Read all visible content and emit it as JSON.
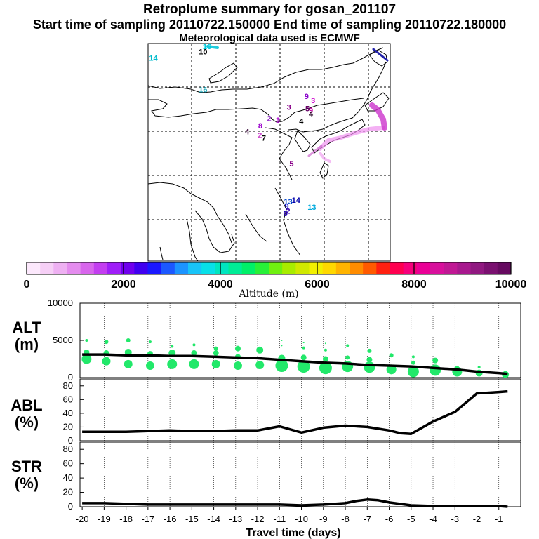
{
  "header": {
    "title": "Retroplume summary for gosan_201107",
    "times": "Start time of sampling 20110722.150000     End time of sampling 20110722.180000",
    "met": "Meteorological data used is ECMWF"
  },
  "map": {
    "labels": [
      {
        "text": "16",
        "lon": 123.4,
        "lat": 55.2,
        "color": "#00ccdd"
      },
      {
        "text": "10",
        "lon": 122.5,
        "lat": 54.0,
        "color": "#000000"
      },
      {
        "text": "14",
        "lon": 111.2,
        "lat": 52.6,
        "color": "#00bbcc"
      },
      {
        "text": "16",
        "lon": 122.5,
        "lat": 45.5,
        "color": "#22aabb"
      },
      {
        "text": "9",
        "lon": 146.0,
        "lat": 44.0,
        "color": "#8800cc"
      },
      {
        "text": "3",
        "lon": 147.5,
        "lat": 43.0,
        "color": "#cc00cc"
      },
      {
        "text": "3",
        "lon": 142.0,
        "lat": 41.5,
        "color": "#880088"
      },
      {
        "text": "9",
        "lon": 147.0,
        "lat": 40.8,
        "color": "#cc00aa"
      },
      {
        "text": "4",
        "lon": 147.0,
        "lat": 40.0,
        "color": "#220022"
      },
      {
        "text": "5",
        "lon": 146.2,
        "lat": 41.2,
        "color": "#660066"
      },
      {
        "text": "2",
        "lon": 137.5,
        "lat": 39.0,
        "color": "#9933cc"
      },
      {
        "text": "4",
        "lon": 144.8,
        "lat": 38.4,
        "color": "#000000"
      },
      {
        "text": "8",
        "lon": 135.5,
        "lat": 37.3,
        "color": "#9900cc"
      },
      {
        "text": "3",
        "lon": 139.5,
        "lat": 38.6,
        "color": "#aa00cc"
      },
      {
        "text": "4",
        "lon": 132.5,
        "lat": 36.0,
        "color": "#330033"
      },
      {
        "text": "2",
        "lon": 135.4,
        "lat": 35.2,
        "color": "#cc44cc"
      },
      {
        "text": "7",
        "lon": 136.3,
        "lat": 34.6,
        "color": "#000000"
      },
      {
        "text": "5",
        "lon": 142.6,
        "lat": 28.8,
        "color": "#880088"
      },
      {
        "text": "13",
        "lon": 141.8,
        "lat": 20.3,
        "color": "#0044cc"
      },
      {
        "text": "14",
        "lon": 143.6,
        "lat": 20.6,
        "color": "#0000aa"
      },
      {
        "text": "9",
        "lon": 141.5,
        "lat": 19.2,
        "color": "#0000cc"
      },
      {
        "text": "13",
        "lon": 147.2,
        "lat": 19.0,
        "color": "#00aadd"
      },
      {
        "text": "8",
        "lon": 141.2,
        "lat": 17.6,
        "color": "#2200bb"
      },
      {
        "text": "2",
        "lon": 141.8,
        "lat": 18.1,
        "color": "#3300aa"
      }
    ]
  },
  "colorbar": {
    "ticks": [
      0,
      2000,
      4000,
      6000,
      8000,
      10000
    ],
    "label": "Altitude (m)",
    "colors": [
      "#fce8fc",
      "#f6cff6",
      "#eeb0f2",
      "#e48cee",
      "#d866ec",
      "#c33ef0",
      "#9f1ef8",
      "#7000ee",
      "#4000f0",
      "#1a18ff",
      "#1c58ff",
      "#1c94ff",
      "#18c4f8",
      "#08e0e8",
      "#00e6c0",
      "#00ec96",
      "#00f068",
      "#28f038",
      "#70f010",
      "#a8ec00",
      "#d0e800",
      "#f2f000",
      "#ffd800",
      "#ffb400",
      "#ff8c00",
      "#ff5a00",
      "#ff2010",
      "#ff0050",
      "#f6007c",
      "#ea0096",
      "#d8109c",
      "#c01894",
      "#a8188e",
      "#901880",
      "#7a1070",
      "#660a60"
    ]
  },
  "xaxis": {
    "label": "Travel time (days)",
    "ticks": [
      "-20",
      "-19",
      "-18",
      "-17",
      "-16",
      "-15",
      "-14",
      "-13",
      "-12",
      "-11",
      "-10",
      "-9",
      "-8",
      "-7",
      "-6",
      "-5",
      "-4",
      "-3",
      "-2",
      "-1"
    ]
  },
  "panels": {
    "alt": {
      "l1": "ALT",
      "l2": "(m)"
    },
    "abl": {
      "l1": "ABL",
      "l2": "(%)"
    },
    "str": {
      "l1": "STR",
      "l2": "(%)"
    }
  },
  "chart_data": [
    {
      "type": "line",
      "name": "ALT",
      "ylabel": "ALT (m)",
      "ylim": [
        0,
        10000
      ],
      "yticks": [
        0,
        5000,
        10000
      ],
      "x": [
        -20,
        -19,
        -18,
        -17,
        -16,
        -15,
        -14,
        -13,
        -12,
        -11,
        -10,
        -9,
        -8,
        -7,
        -6,
        -5,
        -4,
        -3,
        -2,
        -1,
        -0.6
      ],
      "values": [
        3100,
        3100,
        3000,
        3000,
        2900,
        2900,
        2800,
        2700,
        2600,
        2400,
        2200,
        2000,
        1900,
        1700,
        1600,
        1500,
        1300,
        1100,
        800,
        600,
        500
      ],
      "bubbles": [
        {
          "x": -19.8,
          "y": 2500,
          "r": 7
        },
        {
          "x": -19.8,
          "y": 3400,
          "r": 4
        },
        {
          "x": -19.8,
          "y": 5000,
          "r": 2
        },
        {
          "x": -18.9,
          "y": 2200,
          "r": 6
        },
        {
          "x": -18.9,
          "y": 3300,
          "r": 4
        },
        {
          "x": -18.9,
          "y": 4800,
          "r": 3
        },
        {
          "x": -17.9,
          "y": 1800,
          "r": 6
        },
        {
          "x": -17.9,
          "y": 3400,
          "r": 5
        },
        {
          "x": -17.9,
          "y": 5000,
          "r": 3
        },
        {
          "x": -16.9,
          "y": 1600,
          "r": 6
        },
        {
          "x": -16.9,
          "y": 3200,
          "r": 4
        },
        {
          "x": -16.9,
          "y": 4800,
          "r": 2
        },
        {
          "x": -15.9,
          "y": 1800,
          "r": 7
        },
        {
          "x": -15.9,
          "y": 3300,
          "r": 5
        },
        {
          "x": -15.9,
          "y": 4200,
          "r": 2
        },
        {
          "x": -14.9,
          "y": 1800,
          "r": 7
        },
        {
          "x": -14.9,
          "y": 3300,
          "r": 4
        },
        {
          "x": -14.9,
          "y": 4400,
          "r": 2
        },
        {
          "x": -13.9,
          "y": 1800,
          "r": 6
        },
        {
          "x": -13.9,
          "y": 3300,
          "r": 4
        },
        {
          "x": -13.9,
          "y": 3900,
          "r": 3
        },
        {
          "x": -12.9,
          "y": 1600,
          "r": 6
        },
        {
          "x": -12.9,
          "y": 2800,
          "r": 4
        },
        {
          "x": -12.9,
          "y": 3900,
          "r": 4
        },
        {
          "x": -11.9,
          "y": 1700,
          "r": 6
        },
        {
          "x": -11.9,
          "y": 3700,
          "r": 5
        },
        {
          "x": -10.9,
          "y": 1600,
          "r": 9
        },
        {
          "x": -10.9,
          "y": 2600,
          "r": 5
        },
        {
          "x": -10.9,
          "y": 4300,
          "r": 1
        },
        {
          "x": -10.9,
          "y": 5000,
          "r": 1
        },
        {
          "x": -9.9,
          "y": 1500,
          "r": 9
        },
        {
          "x": -9.9,
          "y": 2700,
          "r": 4
        },
        {
          "x": -9.9,
          "y": 4000,
          "r": 2
        },
        {
          "x": -9.9,
          "y": 4700,
          "r": 1
        },
        {
          "x": -8.9,
          "y": 1300,
          "r": 9
        },
        {
          "x": -8.9,
          "y": 2500,
          "r": 4
        },
        {
          "x": -8.9,
          "y": 3700,
          "r": 2
        },
        {
          "x": -8.9,
          "y": 4600,
          "r": 1
        },
        {
          "x": -7.9,
          "y": 1500,
          "r": 8
        },
        {
          "x": -7.9,
          "y": 2700,
          "r": 3
        },
        {
          "x": -7.9,
          "y": 4300,
          "r": 2
        },
        {
          "x": -6.9,
          "y": 1400,
          "r": 8
        },
        {
          "x": -6.9,
          "y": 2400,
          "r": 4
        },
        {
          "x": -6.9,
          "y": 3600,
          "r": 3
        },
        {
          "x": -5.9,
          "y": 1100,
          "r": 7
        },
        {
          "x": -5.9,
          "y": 3000,
          "r": 3
        },
        {
          "x": -4.9,
          "y": 800,
          "r": 8
        },
        {
          "x": -4.9,
          "y": 2000,
          "r": 3
        },
        {
          "x": -4.9,
          "y": 2800,
          "r": 2
        },
        {
          "x": -3.9,
          "y": 1000,
          "r": 8
        },
        {
          "x": -3.9,
          "y": 2300,
          "r": 4
        },
        {
          "x": -2.9,
          "y": 800,
          "r": 7
        },
        {
          "x": -2.9,
          "y": 1300,
          "r": 3
        },
        {
          "x": -1.9,
          "y": 600,
          "r": 5
        },
        {
          "x": -1.9,
          "y": 1400,
          "r": 2
        },
        {
          "x": -0.7,
          "y": 400,
          "r": 5
        }
      ]
    },
    {
      "type": "line",
      "name": "ABL",
      "ylabel": "ABL (%)",
      "ylim": [
        0,
        90
      ],
      "yticks": [
        0,
        20,
        40,
        60,
        80
      ],
      "x": [
        -20,
        -19,
        -18,
        -17,
        -16,
        -15,
        -14,
        -13,
        -12,
        -11,
        -10,
        -9,
        -8,
        -7,
        -6,
        -5.5,
        -5,
        -4,
        -3,
        -2,
        -1.5,
        -1,
        -0.6
      ],
      "values": [
        13,
        13,
        13,
        14,
        15,
        14,
        14,
        15,
        15,
        21,
        12,
        19,
        22,
        20,
        15,
        11,
        10,
        28,
        42,
        69,
        70,
        71,
        72
      ]
    },
    {
      "type": "line",
      "name": "STR",
      "ylabel": "STR (%)",
      "ylim": [
        0,
        90
      ],
      "yticks": [
        0,
        20,
        40,
        60,
        80
      ],
      "x": [
        -20,
        -19,
        -18,
        -17,
        -16,
        -15,
        -14,
        -13,
        -12,
        -11,
        -10,
        -9,
        -8,
        -7.5,
        -7,
        -6.5,
        -6,
        -5,
        -4,
        -3,
        -2,
        -1,
        -0.6
      ],
      "values": [
        5,
        5,
        4,
        3,
        3,
        3,
        3,
        3,
        3,
        3,
        2,
        3,
        5,
        8,
        10,
        9,
        6,
        2,
        1,
        1,
        1,
        1,
        0
      ]
    }
  ]
}
